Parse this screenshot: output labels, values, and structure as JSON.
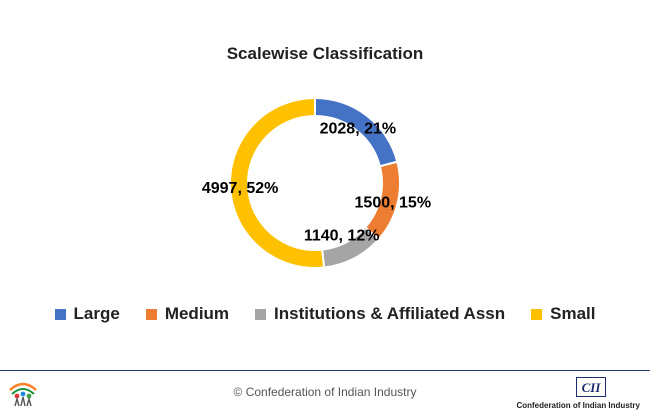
{
  "chart_data": {
    "type": "pie",
    "title": "Scalewise Classification",
    "categories": [
      "Large",
      "Medium",
      "Institutions & Affiliated Assn",
      "Small"
    ],
    "values": [
      2028,
      1500,
      1140,
      4997
    ],
    "percentages": [
      21,
      15,
      12,
      52
    ],
    "data_labels": [
      "2028, 21%",
      "1500, 15%",
      "1140, 12%",
      "4997, 52%"
    ],
    "colors": [
      "#4472c4",
      "#ed7d31",
      "#a5a5a5",
      "#ffc000"
    ],
    "legend_position": "bottom",
    "donut": true
  },
  "footer": {
    "copyright": "© Confederation of Indian Industry",
    "org_name": "Confederation of Indian Industry",
    "logo_text": "CII"
  }
}
